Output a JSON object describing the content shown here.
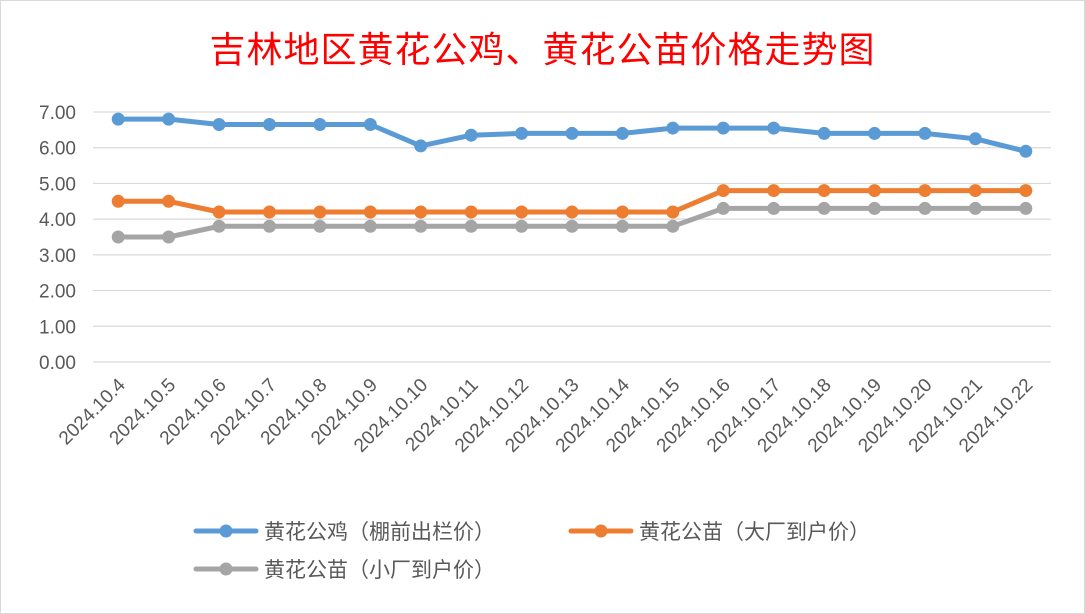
{
  "chart_data": {
    "type": "line",
    "title": "吉林地区黄花公鸡、黄花公苗价格走势图",
    "categories": [
      "2024.10.4",
      "2024.10.5",
      "2024.10.6",
      "2024.10.7",
      "2024.10.8",
      "2024.10.9",
      "2024.10.10",
      "2024.10.11",
      "2024.10.12",
      "2024.10.13",
      "2024.10.14",
      "2024.10.15",
      "2024.10.16",
      "2024.10.17",
      "2024.10.18",
      "2024.10.19",
      "2024.10.20",
      "2024.10.21",
      "2024.10.22"
    ],
    "ylim": [
      0,
      7
    ],
    "yticks": [
      "0.00",
      "1.00",
      "2.00",
      "3.00",
      "4.00",
      "5.00",
      "6.00",
      "7.00"
    ],
    "grid": true,
    "legend_position": "bottom",
    "series": [
      {
        "name": "黄花公鸡（棚前出栏价）",
        "color": "#5b9bd5",
        "values": [
          6.8,
          6.8,
          6.65,
          6.65,
          6.65,
          6.65,
          6.05,
          6.35,
          6.4,
          6.4,
          6.4,
          6.55,
          6.55,
          6.55,
          6.4,
          6.4,
          6.4,
          6.25,
          5.9
        ]
      },
      {
        "name": "黄花公苗（大厂到户价）",
        "color": "#ed7d31",
        "values": [
          4.5,
          4.5,
          4.2,
          4.2,
          4.2,
          4.2,
          4.2,
          4.2,
          4.2,
          4.2,
          4.2,
          4.2,
          4.8,
          4.8,
          4.8,
          4.8,
          4.8,
          4.8,
          4.8
        ]
      },
      {
        "name": "黄花公苗（小厂到户价）",
        "color": "#a5a5a5",
        "values": [
          3.5,
          3.5,
          3.8,
          3.8,
          3.8,
          3.8,
          3.8,
          3.8,
          3.8,
          3.8,
          3.8,
          3.8,
          4.3,
          4.3,
          4.3,
          4.3,
          4.3,
          4.3,
          4.3
        ]
      }
    ]
  }
}
